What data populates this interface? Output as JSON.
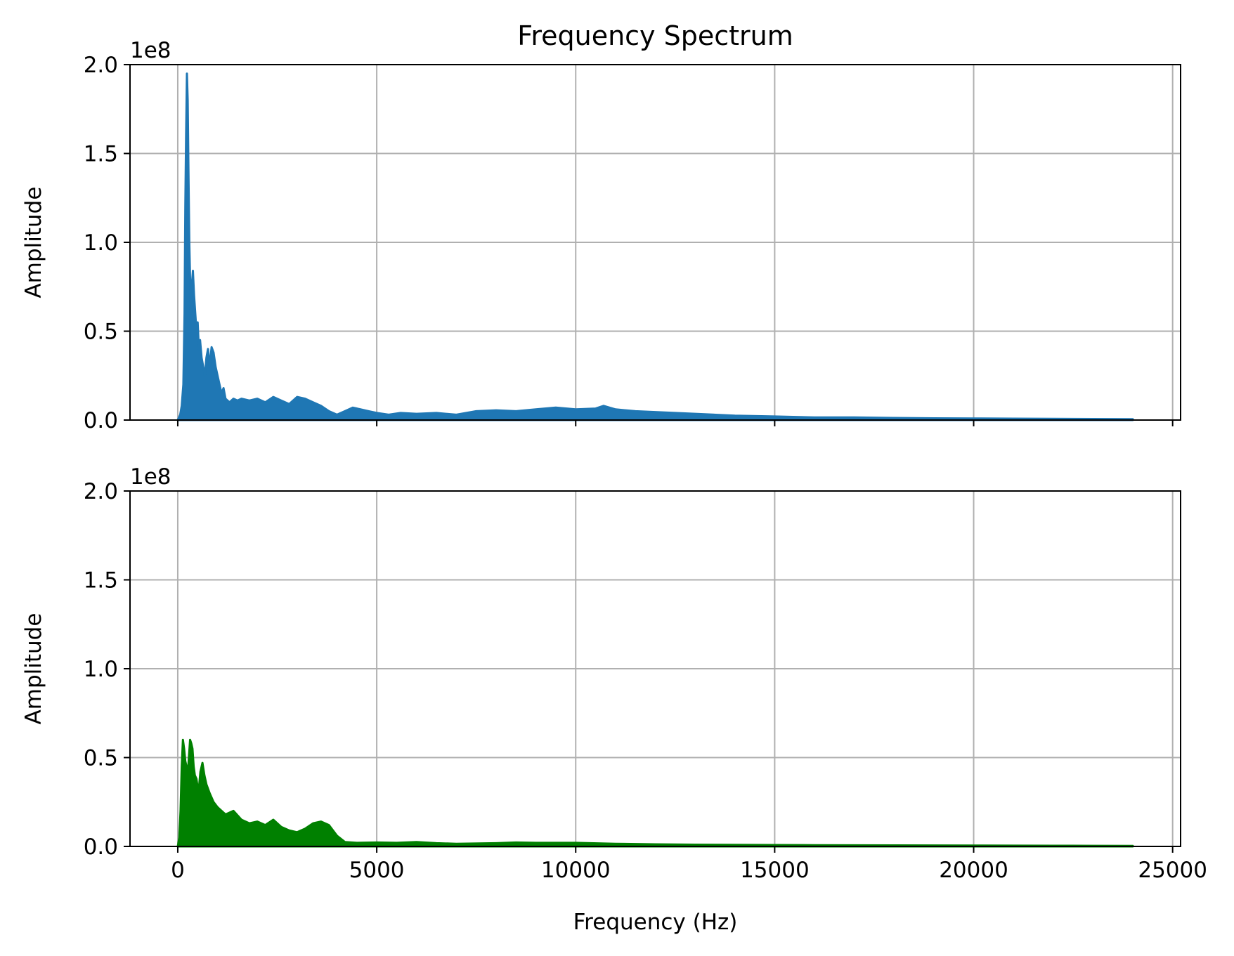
{
  "chart_data": [
    {
      "type": "area",
      "title": "Frequency Spectrum",
      "xlabel": "",
      "ylabel": "Amplitude",
      "offset_label": "1e8",
      "xlim": [
        -1200,
        25200
      ],
      "ylim": [
        0,
        200000000
      ],
      "xticks": [
        0,
        5000,
        10000,
        15000,
        20000,
        25000
      ],
      "show_xtick_labels": false,
      "yticks": [
        0,
        50000000,
        100000000,
        150000000,
        200000000
      ],
      "ytick_labels": [
        "0.0",
        "0.5",
        "1.0",
        "1.5",
        "2.0"
      ],
      "grid": true,
      "color": "#1f77b4",
      "series": [
        {
          "x": [
            0,
            60,
            100,
            140,
            170,
            190,
            210,
            230,
            250,
            270,
            290,
            310,
            330,
            350,
            380,
            410,
            440,
            470,
            500,
            530,
            560,
            600,
            640,
            680,
            720,
            760,
            800,
            850,
            900,
            950,
            1000,
            1050,
            1100,
            1150,
            1200,
            1300,
            1400,
            1500,
            1600,
            1800,
            2000,
            2200,
            2400,
            2600,
            2800,
            3000,
            3200,
            3400,
            3600,
            3800,
            4000,
            4200,
            4400,
            4600,
            4800,
            5000,
            5300,
            5600,
            6000,
            6500,
            7000,
            7500,
            8000,
            8500,
            9000,
            9500,
            10000,
            10500,
            10700,
            11000,
            11500,
            12000,
            12500,
            13000,
            14000,
            15000,
            16000,
            17000,
            18000,
            19000,
            20000,
            21000,
            22000,
            23000,
            24000
          ],
          "y": [
            0,
            3000000,
            8000000,
            20000000,
            60000000,
            120000000,
            160000000,
            195000000,
            180000000,
            140000000,
            100000000,
            80000000,
            60000000,
            75000000,
            84000000,
            70000000,
            60000000,
            50000000,
            55000000,
            40000000,
            45000000,
            35000000,
            30000000,
            25000000,
            35000000,
            40000000,
            30000000,
            41000000,
            38000000,
            30000000,
            25000000,
            20000000,
            15000000,
            18000000,
            12000000,
            10000000,
            12000000,
            11000000,
            12000000,
            11000000,
            12000000,
            10000000,
            13000000,
            11000000,
            9000000,
            13000000,
            12000000,
            10000000,
            8000000,
            5000000,
            3000000,
            5000000,
            7000000,
            6000000,
            5000000,
            4000000,
            3000000,
            4000000,
            3500000,
            4000000,
            3000000,
            5000000,
            5500000,
            5000000,
            6000000,
            7000000,
            6000000,
            6500000,
            8000000,
            6000000,
            5000000,
            4500000,
            4000000,
            3500000,
            2500000,
            2000000,
            1500000,
            1500000,
            1200000,
            1000000,
            900000,
            800000,
            700000,
            600000,
            500000
          ]
        }
      ]
    },
    {
      "type": "area",
      "title": "",
      "xlabel": "Frequency (Hz)",
      "ylabel": "Amplitude",
      "offset_label": "1e8",
      "xlim": [
        -1200,
        25200
      ],
      "ylim": [
        0,
        200000000
      ],
      "xticks": [
        0,
        5000,
        10000,
        15000,
        20000,
        25000
      ],
      "xtick_labels": [
        "0",
        "5000",
        "10000",
        "15000",
        "20000",
        "25000"
      ],
      "show_xtick_labels": true,
      "yticks": [
        0,
        50000000,
        100000000,
        150000000,
        200000000
      ],
      "ytick_labels": [
        "0.0",
        "0.5",
        "1.0",
        "1.5",
        "2.0"
      ],
      "grid": true,
      "color": "#008000",
      "series": [
        {
          "x": [
            0,
            40,
            70,
            100,
            130,
            160,
            190,
            220,
            250,
            280,
            310,
            340,
            370,
            400,
            430,
            470,
            520,
            570,
            620,
            670,
            720,
            800,
            900,
            1000,
            1200,
            1400,
            1600,
            1800,
            2000,
            2200,
            2400,
            2600,
            2800,
            3000,
            3200,
            3400,
            3600,
            3800,
            4000,
            4200,
            4500,
            5000,
            5500,
            6000,
            6500,
            7000,
            8000,
            8500,
            9000,
            10000,
            11000,
            12000,
            13000,
            14000,
            15000,
            16000,
            17000,
            18000,
            19000,
            20000,
            21000,
            22000,
            23000,
            24000
          ],
          "y": [
            0,
            5000000,
            20000000,
            45000000,
            60000000,
            55000000,
            48000000,
            45000000,
            40000000,
            50000000,
            60000000,
            58000000,
            55000000,
            45000000,
            40000000,
            38000000,
            30000000,
            42000000,
            47000000,
            40000000,
            35000000,
            30000000,
            25000000,
            22000000,
            18000000,
            20000000,
            15000000,
            13000000,
            14000000,
            12000000,
            15000000,
            11000000,
            9000000,
            8000000,
            10000000,
            13000000,
            14000000,
            12000000,
            6000000,
            2500000,
            2000000,
            2200000,
            2000000,
            2500000,
            1800000,
            1500000,
            1800000,
            2200000,
            2000000,
            2000000,
            1500000,
            1200000,
            1000000,
            900000,
            800000,
            700000,
            650000,
            600000,
            550000,
            500000,
            450000,
            400000,
            350000,
            300000
          ]
        }
      ]
    }
  ]
}
